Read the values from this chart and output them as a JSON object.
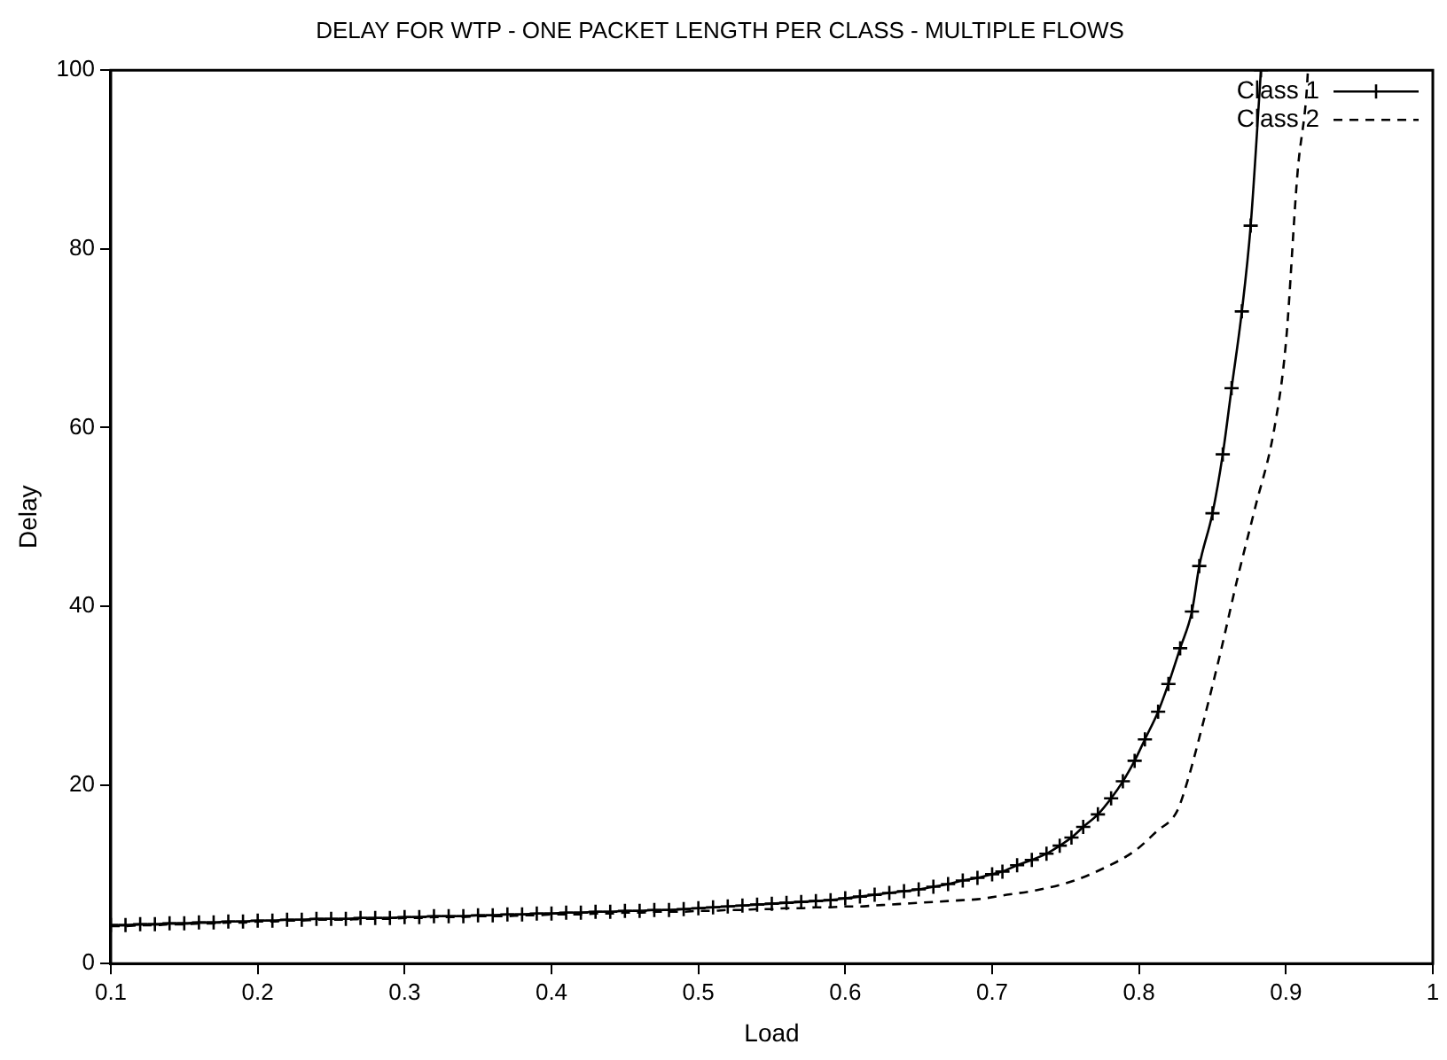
{
  "chart_data": {
    "type": "line",
    "title": "DELAY FOR WTP - ONE PACKET LENGTH PER CLASS - MULTIPLE FLOWS",
    "xlabel": "Load",
    "ylabel": "Delay",
    "xlim": [
      0.1,
      1
    ],
    "xticks": [
      0.1,
      0.2,
      0.3,
      0.4,
      0.5,
      0.6,
      0.7,
      0.8,
      0.9,
      1
    ],
    "ylim": [
      0,
      100
    ],
    "yticks": [
      0,
      20,
      40,
      60,
      80,
      100
    ],
    "grid": false,
    "legend": "top right",
    "series": [
      {
        "name": "Class 1",
        "color": "#000000",
        "marker": "cross",
        "line_style": "solid",
        "x": [
          0.1,
          0.11,
          0.12,
          0.13,
          0.14,
          0.15,
          0.16,
          0.17,
          0.18,
          0.19,
          0.2,
          0.21,
          0.22,
          0.23,
          0.24,
          0.25,
          0.26,
          0.27,
          0.28,
          0.29,
          0.3,
          0.31,
          0.32,
          0.33,
          0.34,
          0.35,
          0.36,
          0.37,
          0.38,
          0.39,
          0.4,
          0.41,
          0.42,
          0.43,
          0.44,
          0.45,
          0.46,
          0.47,
          0.48,
          0.49,
          0.5,
          0.51,
          0.52,
          0.53,
          0.54,
          0.55,
          0.56,
          0.57,
          0.58,
          0.59,
          0.6,
          0.61,
          0.62,
          0.63,
          0.64,
          0.65,
          0.66,
          0.67,
          0.68,
          0.69,
          0.7,
          0.707,
          0.717,
          0.727,
          0.737,
          0.746,
          0.754,
          0.762,
          0.772,
          0.781,
          0.789,
          0.797,
          0.804,
          0.813,
          0.82,
          0.828,
          0.836,
          0.841,
          0.85,
          0.857,
          0.863,
          0.87,
          0.876,
          0.883
        ],
        "values": [
          4.3,
          4.3,
          4.4,
          4.4,
          4.5,
          4.5,
          4.6,
          4.6,
          4.7,
          4.7,
          4.8,
          4.8,
          4.9,
          4.9,
          5.0,
          5.0,
          5.0,
          5.1,
          5.1,
          5.1,
          5.2,
          5.2,
          5.3,
          5.3,
          5.3,
          5.4,
          5.4,
          5.5,
          5.5,
          5.6,
          5.6,
          5.7,
          5.7,
          5.8,
          5.8,
          5.9,
          5.9,
          6.0,
          6.0,
          6.1,
          6.2,
          6.3,
          6.4,
          6.5,
          6.6,
          6.7,
          6.8,
          6.9,
          7.0,
          7.1,
          7.3,
          7.5,
          7.7,
          7.9,
          8.1,
          8.3,
          8.6,
          8.9,
          9.3,
          9.6,
          10.0,
          10.3,
          11.0,
          11.6,
          12.3,
          13.2,
          14.1,
          15.3,
          16.7,
          18.5,
          20.4,
          22.7,
          25.1,
          28.2,
          31.3,
          35.3,
          39.4,
          44.5,
          50.4,
          57,
          64.4,
          73,
          82.6,
          100
        ]
      },
      {
        "name": "Class 2",
        "color": "#000000",
        "marker": "none",
        "line_style": "dashed",
        "x": [
          0.1,
          0.11,
          0.12,
          0.13,
          0.14,
          0.15,
          0.16,
          0.17,
          0.18,
          0.19,
          0.2,
          0.21,
          0.22,
          0.23,
          0.24,
          0.25,
          0.26,
          0.27,
          0.28,
          0.29,
          0.3,
          0.31,
          0.32,
          0.33,
          0.34,
          0.35,
          0.36,
          0.37,
          0.38,
          0.39,
          0.4,
          0.41,
          0.42,
          0.43,
          0.44,
          0.45,
          0.46,
          0.47,
          0.48,
          0.49,
          0.5,
          0.51,
          0.52,
          0.53,
          0.54,
          0.55,
          0.56,
          0.57,
          0.58,
          0.59,
          0.6,
          0.61,
          0.62,
          0.63,
          0.64,
          0.65,
          0.66,
          0.67,
          0.68,
          0.69,
          0.71,
          0.73,
          0.756,
          0.78,
          0.797,
          0.812,
          0.826,
          0.834,
          0.842,
          0.855,
          0.867,
          0.879,
          0.892,
          0.9,
          0.908,
          0.914,
          0.915
        ],
        "values": [
          4.2,
          4.2,
          4.3,
          4.3,
          4.4,
          4.4,
          4.5,
          4.5,
          4.6,
          4.6,
          4.7,
          4.7,
          4.8,
          4.8,
          4.9,
          4.9,
          4.9,
          5.0,
          5.0,
          5.0,
          5.1,
          5.1,
          5.2,
          5.2,
          5.2,
          5.3,
          5.3,
          5.3,
          5.4,
          5.4,
          5.5,
          5.5,
          5.5,
          5.6,
          5.6,
          5.7,
          5.7,
          5.8,
          5.8,
          5.8,
          5.9,
          5.9,
          6.0,
          6.0,
          6.1,
          6.1,
          6.2,
          6.2,
          6.3,
          6.3,
          6.4,
          6.4,
          6.5,
          6.6,
          6.7,
          6.8,
          6.9,
          7.0,
          7.1,
          7.2,
          7.7,
          8.2,
          9.3,
          11.0,
          12.6,
          14.8,
          17.1,
          21.0,
          25.9,
          34.5,
          43.1,
          51,
          59.8,
          69.5,
          88.7,
          97.3,
          100
        ]
      }
    ]
  }
}
